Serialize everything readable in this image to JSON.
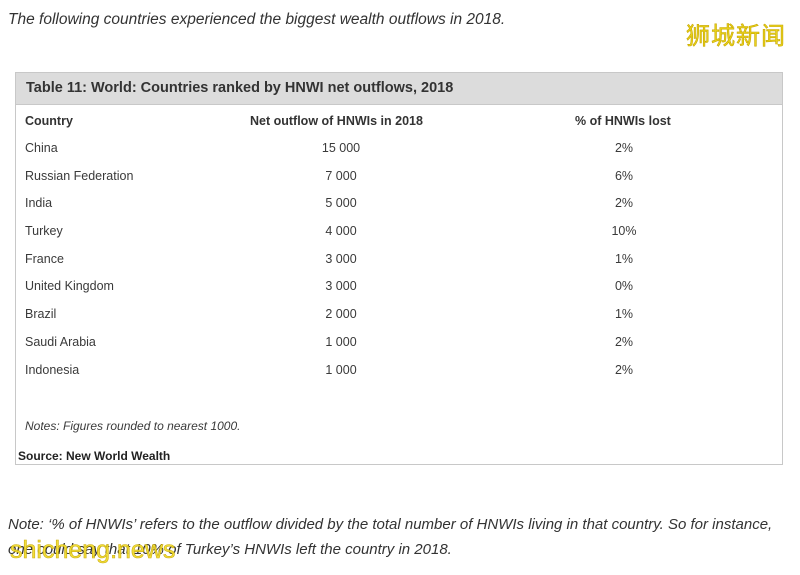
{
  "intro_text": "The following countries experienced the biggest wealth outflows in 2018.",
  "watermark_top": "狮城新闻",
  "watermark_bottom": "shicheng.news",
  "table": {
    "title": "Table 11: World: Countries ranked by HNWI net outflows, 2018",
    "columns": [
      "Country",
      "Net outflow of HNWIs in 2018",
      "% of HNWIs lost"
    ],
    "rows": [
      {
        "country": "China",
        "outflow": "15 000",
        "pct": "2%"
      },
      {
        "country": "Russian Federation",
        "outflow": "7 000",
        "pct": "6%"
      },
      {
        "country": "India",
        "outflow": "5 000",
        "pct": "2%"
      },
      {
        "country": "Turkey",
        "outflow": "4 000",
        "pct": "10%"
      },
      {
        "country": "France",
        "outflow": "3 000",
        "pct": "1%"
      },
      {
        "country": "United Kingdom",
        "outflow": "3 000",
        "pct": "0%"
      },
      {
        "country": "Brazil",
        "outflow": "2 000",
        "pct": "1%"
      },
      {
        "country": "Saudi Arabia",
        "outflow": "1 000",
        "pct": "2%"
      },
      {
        "country": "Indonesia",
        "outflow": "1 000",
        "pct": "2%"
      }
    ],
    "notes": "Notes: Figures rounded to nearest 1000.",
    "source": "Source: New World Wealth"
  },
  "footnote": "Note: ‘% of HNWIs’ refers to the outflow divided by the total number of HNWIs living in that country. So for instance, one could say that 10% of Turkey’s HNWIs left the country in 2018.",
  "colors": {
    "header_bar": "#dcdcdc",
    "border": "#c8c8c8",
    "watermark": "#e8d21c"
  }
}
